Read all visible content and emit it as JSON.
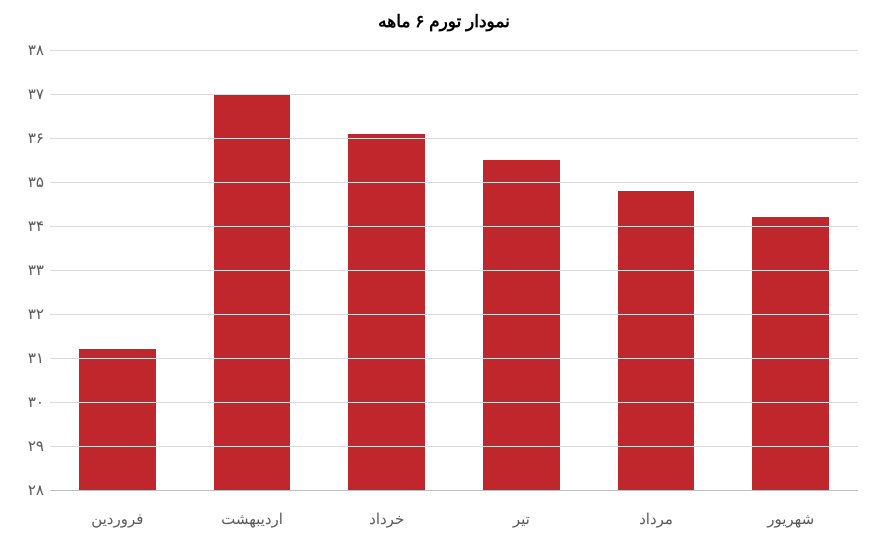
{
  "chart": {
    "type": "bar",
    "title": "نمودار تورم ۶ ماهه",
    "title_fontsize": 17,
    "title_color": "#000000",
    "categories": [
      "فروردین",
      "اردیبهشت",
      "خرداد",
      "تیر",
      "مرداد",
      "شهریور"
    ],
    "values": [
      31.2,
      37.0,
      36.1,
      35.5,
      34.8,
      34.2
    ],
    "bar_color": "#c0272d",
    "bar_width": 0.57,
    "y": {
      "min": 28,
      "max": 38,
      "tick_step": 1,
      "ticks": [
        28,
        29,
        30,
        31,
        32,
        33,
        34,
        35,
        36,
        37,
        38
      ],
      "tick_labels": [
        "۲۸",
        "۲۹",
        "۳۰",
        "۳۱",
        "۳۲",
        "۳۳",
        "۳۴",
        "۳۵",
        "۳۶",
        "۳۷",
        "۳۸"
      ],
      "label_fontsize": 15,
      "label_color": "#595959"
    },
    "x": {
      "label_fontsize": 15,
      "label_color": "#595959"
    },
    "background_color": "#ffffff",
    "grid_color": "#d9d9d9",
    "baseline_color": "#bfbfbf"
  }
}
